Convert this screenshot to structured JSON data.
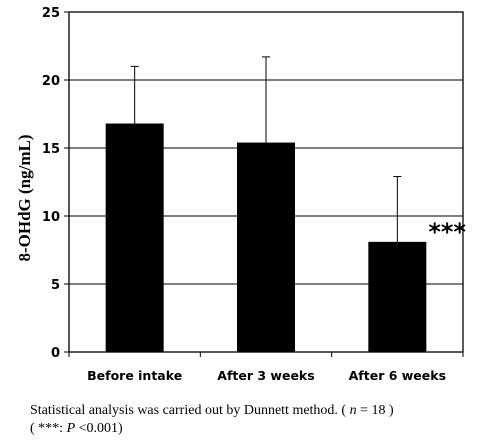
{
  "chart_data": {
    "type": "bar",
    "title": "",
    "xlabel": "",
    "ylabel": "8-OHdG (ng/mL)",
    "ylim": [
      0,
      25
    ],
    "yticks": [
      "0",
      "5",
      "10",
      "15",
      "20",
      "25"
    ],
    "categories": [
      "Before intake",
      "After 3 weeks",
      "After 6 weeks"
    ],
    "values": [
      16.8,
      15.4,
      8.1
    ],
    "error_upper": [
      21.0,
      21.7,
      12.9
    ],
    "grid": true,
    "bar_color": "#000000",
    "annotations": [
      {
        "category": "After 6 weeks",
        "text": "***"
      }
    ]
  },
  "footnote": {
    "line1_text": "Statistical analysis was carried out by Dunnett method. (",
    "line1_var": "n",
    "line1_rest": " = 18 )",
    "line2_open": "( ***: ",
    "line2_var": "P",
    "line2_rest": " <0.001)"
  }
}
